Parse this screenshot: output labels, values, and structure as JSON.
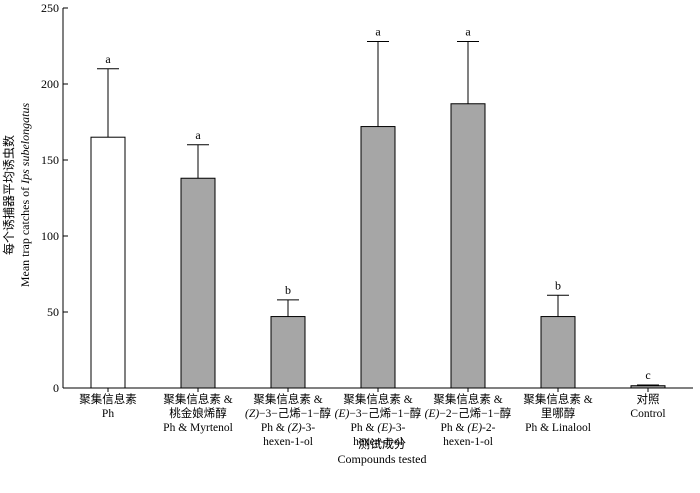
{
  "chart_data": {
    "type": "bar",
    "xlabel_cn": "测试成分",
    "xlabel_en": "Compounds tested",
    "ylabel_cn": "每个诱捕器平均诱虫数",
    "ylabel_en_prefix": "Mean trap catches of ",
    "ylabel_en_species": "Ips subelongatus",
    "ylim": [
      0,
      250
    ],
    "yticks": [
      "0",
      "50",
      "100",
      "150",
      "200",
      "250"
    ],
    "categories": [
      {
        "lines": [
          {
            "parts": [
              {
                "t": "聚集信息素"
              }
            ]
          },
          {
            "parts": [
              {
                "t": "Ph"
              }
            ]
          }
        ]
      },
      {
        "lines": [
          {
            "parts": [
              {
                "t": "聚集信息素 &"
              }
            ]
          },
          {
            "parts": [
              {
                "t": "桃金娘烯醇"
              }
            ]
          },
          {
            "parts": [
              {
                "t": "Ph & Myrtenol"
              }
            ]
          }
        ]
      },
      {
        "lines": [
          {
            "parts": [
              {
                "t": "聚集信息素 &"
              }
            ]
          },
          {
            "parts": [
              {
                "t": "(Z)",
                "i": true
              },
              {
                "t": "−3−己烯−1−醇"
              }
            ]
          },
          {
            "parts": [
              {
                "t": "Ph & "
              },
              {
                "t": "(Z)",
                "i": true
              },
              {
                "t": "-3-"
              }
            ]
          },
          {
            "parts": [
              {
                "t": "hexen-1-ol"
              }
            ]
          }
        ]
      },
      {
        "lines": [
          {
            "parts": [
              {
                "t": "聚集信息素 &"
              }
            ]
          },
          {
            "parts": [
              {
                "t": "(E)",
                "i": true
              },
              {
                "t": "−3−己烯−1−醇"
              }
            ]
          },
          {
            "parts": [
              {
                "t": "Ph & "
              },
              {
                "t": "(E)",
                "i": true
              },
              {
                "t": "-3-"
              }
            ]
          },
          {
            "parts": [
              {
                "t": "hexen-1-ol"
              }
            ]
          }
        ]
      },
      {
        "lines": [
          {
            "parts": [
              {
                "t": "聚集信息素 &"
              }
            ]
          },
          {
            "parts": [
              {
                "t": "(E)",
                "i": true
              },
              {
                "t": "−2−己烯−1−醇"
              }
            ]
          },
          {
            "parts": [
              {
                "t": "Ph & "
              },
              {
                "t": "(E)",
                "i": true
              },
              {
                "t": "-2-"
              }
            ]
          },
          {
            "parts": [
              {
                "t": "hexen-1-ol"
              }
            ]
          }
        ]
      },
      {
        "lines": [
          {
            "parts": [
              {
                "t": "聚集信息素 &"
              }
            ]
          },
          {
            "parts": [
              {
                "t": "里哪醇"
              }
            ]
          },
          {
            "parts": [
              {
                "t": "Ph & Linalool"
              }
            ]
          }
        ]
      },
      {
        "lines": [
          {
            "parts": [
              {
                "t": "对照"
              }
            ]
          },
          {
            "parts": [
              {
                "t": "Control"
              }
            ]
          }
        ]
      }
    ],
    "values": [
      165,
      138,
      47,
      172,
      187,
      47,
      1.5
    ],
    "errors": [
      45,
      22,
      11,
      56,
      41,
      14,
      0.5
    ],
    "letters": [
      "a",
      "a",
      "b",
      "a",
      "a",
      "b",
      "c"
    ],
    "fills": [
      "#ffffff",
      "#a6a6a6",
      "#a6a6a6",
      "#a6a6a6",
      "#a6a6a6",
      "#a6a6a6",
      "#a6a6a6"
    ],
    "grid": false
  }
}
